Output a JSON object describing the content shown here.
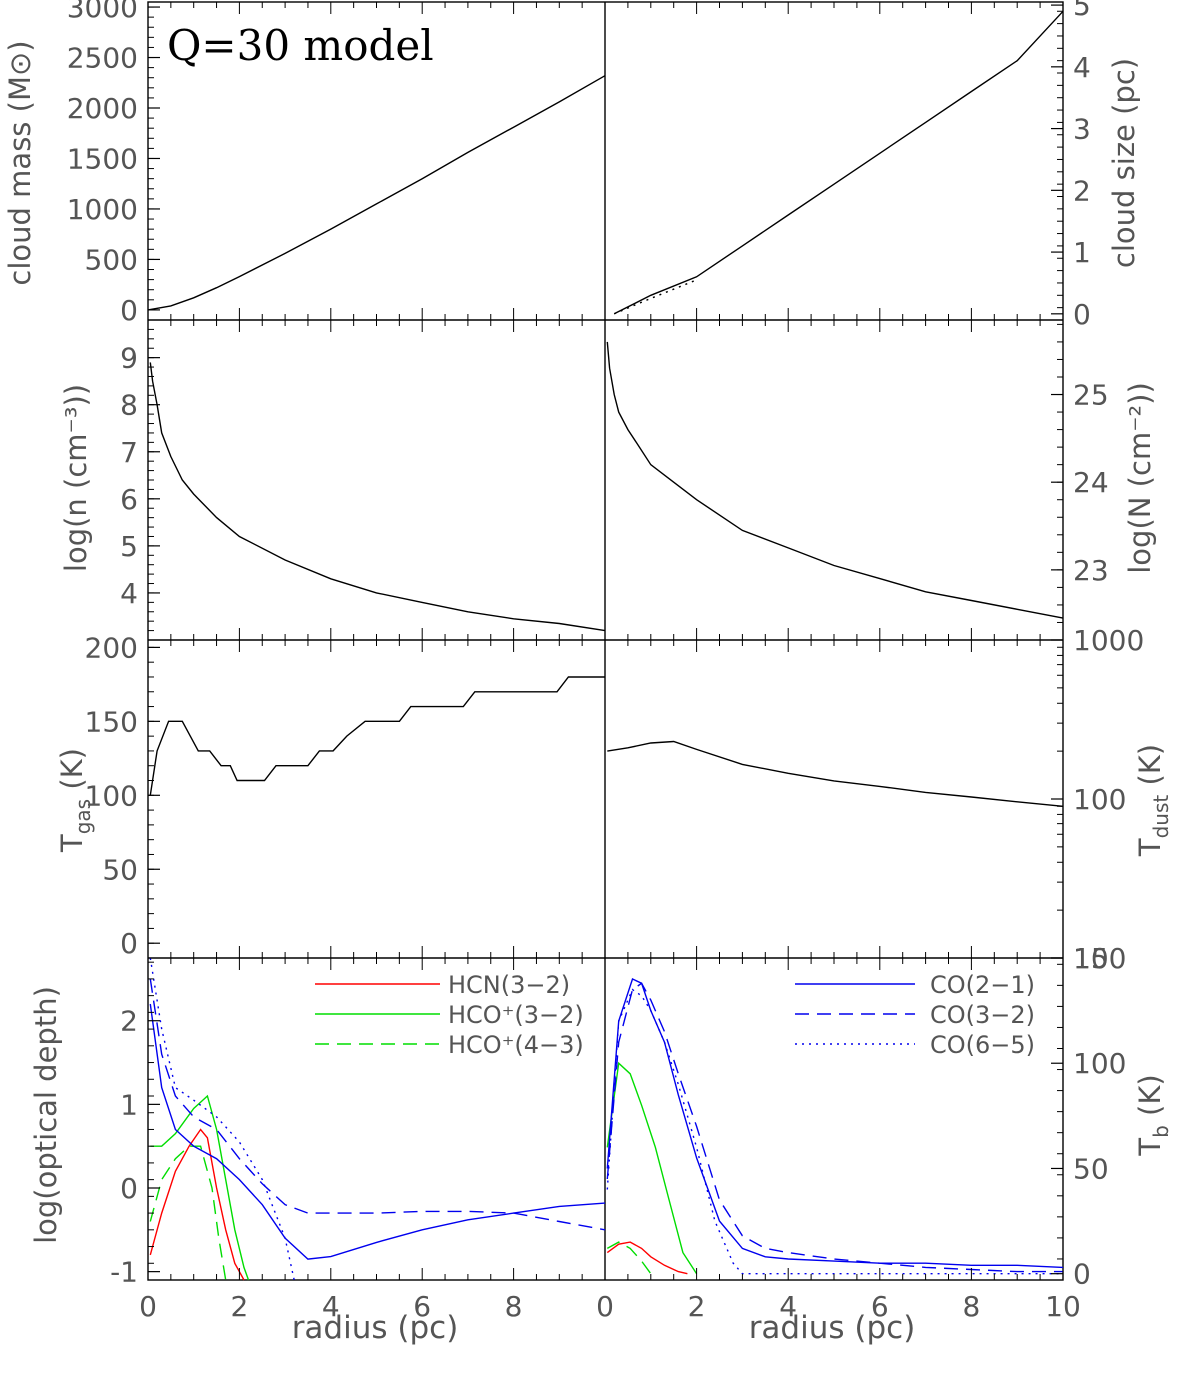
{
  "model_label": "Q=30 model",
  "x_axis": {
    "label": "radius (pc)",
    "left_ticks": [
      "0",
      "2",
      "4",
      "6",
      "8"
    ],
    "right_ticks": [
      "0",
      "2",
      "4",
      "6",
      "8",
      "10"
    ]
  },
  "axis_labels": {
    "cloud_mass": "cloud mass (M⊙)",
    "cloud_size": "cloud size (pc)",
    "log_n": "log(n (cm⁻³))",
    "log_N": "log(N (cm⁻²))",
    "t_gas": "T",
    "t_gas_sub": "gas",
    "t_gas_unit": " (K)",
    "t_dust": "T",
    "t_dust_sub": "dust",
    "t_dust_unit": " (K)",
    "optical_depth": "log(optical depth)",
    "t_b": "T",
    "t_b_sub": "b",
    "t_b_unit": " (K)"
  },
  "legend_left": [
    {
      "label": "HCN(3−2)",
      "color": "#ff0000",
      "dash": "solid"
    },
    {
      "label": "HCO⁺(3−2)",
      "color": "#00dd00",
      "dash": "solid"
    },
    {
      "label": "HCO⁺(4−3)",
      "color": "#00dd00",
      "dash": "dashed"
    }
  ],
  "legend_right": [
    {
      "label": "CO(2−1)",
      "color": "#0000ee",
      "dash": "solid"
    },
    {
      "label": "CO(3−2)",
      "color": "#0000ee",
      "dash": "dashed"
    },
    {
      "label": "CO(6−5)",
      "color": "#0000ee",
      "dash": "dotted"
    }
  ],
  "chart_data": [
    {
      "type": "line",
      "panel": "cloud_mass",
      "ylabel": "cloud mass (M⊙)",
      "xlim": [
        0,
        10
      ],
      "ylim": [
        -100,
        3050
      ],
      "yticks": [
        0,
        500,
        1000,
        1500,
        2000,
        2500,
        3000
      ],
      "series": [
        {
          "color": "#000000",
          "dash": "solid",
          "x": [
            0,
            0.5,
            1,
            1.5,
            2,
            3,
            4,
            5,
            6,
            7,
            8,
            9,
            10
          ],
          "y": [
            0,
            40,
            120,
            220,
            330,
            560,
            800,
            1050,
            1300,
            1560,
            1810,
            2060,
            2320
          ]
        }
      ]
    },
    {
      "type": "line",
      "panel": "cloud_size",
      "ylabel": "cloud size (pc)",
      "xlim": [
        0,
        10
      ],
      "ylim": [
        -0.1,
        5.05
      ],
      "yticks": [
        0,
        1,
        2,
        3,
        4,
        5
      ],
      "series": [
        {
          "color": "#000000",
          "dash": "solid",
          "x": [
            0.2,
            1,
            2,
            3,
            4,
            5,
            6,
            7,
            8,
            9,
            10
          ],
          "y": [
            0,
            0.3,
            0.6,
            1.1,
            1.6,
            2.1,
            2.6,
            3.1,
            3.6,
            4.1,
            4.9
          ]
        },
        {
          "color": "#000000",
          "dash": "dotted",
          "x": [
            0.2,
            1,
            2
          ],
          "y": [
            0,
            0.25,
            0.55
          ]
        }
      ]
    },
    {
      "type": "line",
      "panel": "log_n",
      "ylabel": "log(n (cm⁻³))",
      "xlim": [
        0,
        10
      ],
      "ylim": [
        3.0,
        9.8
      ],
      "yticks": [
        4,
        5,
        6,
        7,
        8,
        9
      ],
      "series": [
        {
          "color": "#000000",
          "dash": "solid",
          "x": [
            0.05,
            0.1,
            0.2,
            0.3,
            0.5,
            0.75,
            1,
            1.5,
            2,
            3,
            4,
            5,
            6,
            7,
            8,
            9,
            10
          ],
          "y": [
            8.9,
            8.5,
            8.0,
            7.4,
            6.9,
            6.4,
            6.1,
            5.6,
            5.2,
            4.7,
            4.3,
            4.0,
            3.8,
            3.6,
            3.45,
            3.35,
            3.2
          ]
        }
      ]
    },
    {
      "type": "line",
      "panel": "log_N",
      "ylabel": "log(N (cm⁻²))",
      "xlim": [
        0,
        10
      ],
      "ylim": [
        22.2,
        25.85
      ],
      "yticks": [
        23,
        24,
        25
      ],
      "series": [
        {
          "color": "#000000",
          "dash": "solid",
          "x": [
            0.05,
            0.1,
            0.2,
            0.3,
            0.5,
            0.75,
            1,
            1.5,
            2,
            3,
            4,
            5,
            6,
            7,
            8,
            9,
            10
          ],
          "y": [
            25.6,
            25.3,
            25.0,
            24.8,
            24.6,
            24.4,
            24.2,
            24.0,
            23.8,
            23.45,
            23.25,
            23.05,
            22.9,
            22.75,
            22.65,
            22.55,
            22.45
          ]
        }
      ]
    },
    {
      "type": "line",
      "panel": "t_gas",
      "ylabel": "T gas (K)",
      "xlim": [
        0,
        10
      ],
      "ylim": [
        -10,
        205
      ],
      "yticks": [
        0,
        50,
        100,
        150,
        200
      ],
      "series": [
        {
          "color": "#000000",
          "dash": "solid",
          "x": [
            0.05,
            0.2,
            0.45,
            0.75,
            1.1,
            1.35,
            1.6,
            1.8,
            1.95,
            2.55,
            2.8,
            3.5,
            3.75,
            4.05,
            4.35,
            4.75,
            5.5,
            5.75,
            6.9,
            7.15,
            8.95,
            9.2,
            10
          ],
          "y": [
            100,
            130,
            150,
            150,
            130,
            130,
            120,
            120,
            110,
            110,
            120,
            120,
            130,
            130,
            140,
            150,
            150,
            160,
            160,
            170,
            170,
            180,
            180
          ]
        }
      ]
    },
    {
      "type": "line",
      "panel": "t_dust",
      "ylabel": "T dust (K)",
      "scale": "log",
      "xlim": [
        0,
        10
      ],
      "ylim": [
        10,
        1000
      ],
      "yticks": [
        10,
        100,
        1000
      ],
      "series": [
        {
          "color": "#000000",
          "dash": "solid",
          "x": [
            0.05,
            0.5,
            1,
            1.5,
            2,
            3,
            4,
            5,
            6,
            7,
            8,
            9,
            10
          ],
          "y": [
            200,
            210,
            225,
            230,
            205,
            165,
            145,
            130,
            120,
            110,
            103,
            96,
            90
          ]
        }
      ]
    },
    {
      "type": "line",
      "panel": "optical_depth",
      "ylabel": "log(optical depth)",
      "xlim": [
        0,
        10
      ],
      "ylim": [
        -1.1,
        2.75
      ],
      "yticks": [
        -1,
        0,
        1,
        2
      ],
      "series": [
        {
          "name": "HCN(3−2)",
          "color": "#ff0000",
          "dash": "solid",
          "x": [
            0.05,
            0.3,
            0.6,
            0.9,
            1.15,
            1.3,
            1.5,
            1.7,
            1.9,
            2.1
          ],
          "y": [
            -0.8,
            -0.3,
            0.2,
            0.5,
            0.7,
            0.6,
            0.0,
            -0.5,
            -0.9,
            -1.1
          ]
        },
        {
          "name": "HCO⁺(3−2)",
          "color": "#00dd00",
          "dash": "solid",
          "x": [
            0.05,
            0.3,
            0.6,
            1.0,
            1.3,
            1.5,
            1.7,
            1.9,
            2.1,
            2.2
          ],
          "y": [
            0.5,
            0.5,
            0.65,
            0.95,
            1.1,
            0.7,
            0.1,
            -0.5,
            -0.95,
            -1.1
          ]
        },
        {
          "name": "HCO⁺(4−3)",
          "color": "#00dd00",
          "dash": "dashed",
          "x": [
            0.05,
            0.3,
            0.6,
            0.9,
            1.15,
            1.4,
            1.55,
            1.7
          ],
          "y": [
            -0.4,
            0.1,
            0.35,
            0.5,
            0.5,
            0.0,
            -0.6,
            -1.1
          ]
        },
        {
          "name": "CO(2−1)",
          "color": "#0000ee",
          "dash": "solid",
          "x": [
            0.05,
            0.3,
            0.6,
            1,
            1.5,
            2,
            2.5,
            3,
            3.5,
            4,
            5,
            6,
            7,
            8,
            9,
            10
          ],
          "y": [
            2.2,
            1.2,
            0.7,
            0.5,
            0.35,
            0.1,
            -0.2,
            -0.6,
            -0.85,
            -0.82,
            -0.65,
            -0.5,
            -0.38,
            -0.3,
            -0.22,
            -0.18
          ]
        },
        {
          "name": "CO(3−2)",
          "color": "#0000ee",
          "dash": "dashed",
          "x": [
            0.05,
            0.3,
            0.6,
            1,
            1.5,
            2,
            2.5,
            3,
            3.5,
            4,
            5,
            6,
            7,
            8,
            9,
            10
          ],
          "y": [
            2.5,
            1.6,
            1.1,
            0.85,
            0.7,
            0.35,
            0.05,
            -0.2,
            -0.3,
            -0.3,
            -0.3,
            -0.28,
            -0.28,
            -0.3,
            -0.4,
            -0.5
          ]
        },
        {
          "name": "CO(6−5)",
          "color": "#0000ee",
          "dash": "dotted",
          "x": [
            0.05,
            0.3,
            0.6,
            1,
            1.5,
            2,
            2.5,
            3,
            3.2
          ],
          "y": [
            2.8,
            1.9,
            1.2,
            1.05,
            0.85,
            0.55,
            0.1,
            -0.6,
            -1.1
          ]
        }
      ]
    },
    {
      "type": "line",
      "panel": "t_b",
      "ylabel": "T b (K)",
      "xlim": [
        0,
        10
      ],
      "ylim": [
        -3,
        150
      ],
      "yticks": [
        0,
        50,
        100,
        150
      ],
      "series": [
        {
          "name": "HCN(3−2)",
          "color": "#ff0000",
          "dash": "solid",
          "x": [
            0.05,
            0.3,
            0.55,
            0.8,
            1.0,
            1.3,
            1.6,
            1.8
          ],
          "y": [
            10,
            14,
            15,
            12,
            8,
            4,
            1,
            0
          ]
        },
        {
          "name": "HCO⁺(3−2)",
          "color": "#00dd00",
          "dash": "solid",
          "x": [
            0.05,
            0.3,
            0.55,
            0.8,
            1.1,
            1.4,
            1.7,
            2.0
          ],
          "y": [
            60,
            100,
            95,
            80,
            60,
            35,
            10,
            0
          ]
        },
        {
          "name": "HCO⁺(4−3)",
          "color": "#00dd00",
          "dash": "dashed",
          "x": [
            0.05,
            0.3,
            0.55,
            0.8,
            1.0
          ],
          "y": [
            12,
            15,
            12,
            6,
            0
          ]
        },
        {
          "name": "CO(2−1)",
          "color": "#0000ee",
          "dash": "solid",
          "x": [
            0.05,
            0.3,
            0.6,
            0.8,
            1.0,
            1.3,
            1.6,
            2.0,
            2.5,
            3.0,
            3.5,
            4,
            5,
            6,
            7,
            8,
            9,
            10
          ],
          "y": [
            50,
            120,
            140,
            138,
            125,
            110,
            85,
            55,
            25,
            12,
            8,
            7,
            6,
            5,
            5,
            4,
            4,
            3
          ]
        },
        {
          "name": "CO(3−2)",
          "color": "#0000ee",
          "dash": "dashed",
          "x": [
            0.05,
            0.3,
            0.6,
            0.8,
            1.0,
            1.3,
            1.6,
            2.0,
            2.5,
            3.0,
            3.5,
            4,
            5,
            6,
            7,
            8,
            9,
            10
          ],
          "y": [
            45,
            110,
            135,
            138,
            130,
            115,
            95,
            70,
            35,
            18,
            12,
            10,
            7,
            5,
            3,
            2,
            1,
            1
          ]
        },
        {
          "name": "CO(6−5)",
          "color": "#0000ee",
          "dash": "dotted",
          "x": [
            0.05,
            0.3,
            0.6,
            0.8,
            1.0,
            1.3,
            1.6,
            2.0,
            2.4,
            2.8,
            3.0,
            10
          ],
          "y": [
            40,
            120,
            135,
            132,
            125,
            110,
            90,
            60,
            25,
            5,
            0,
            0
          ]
        }
      ]
    }
  ]
}
